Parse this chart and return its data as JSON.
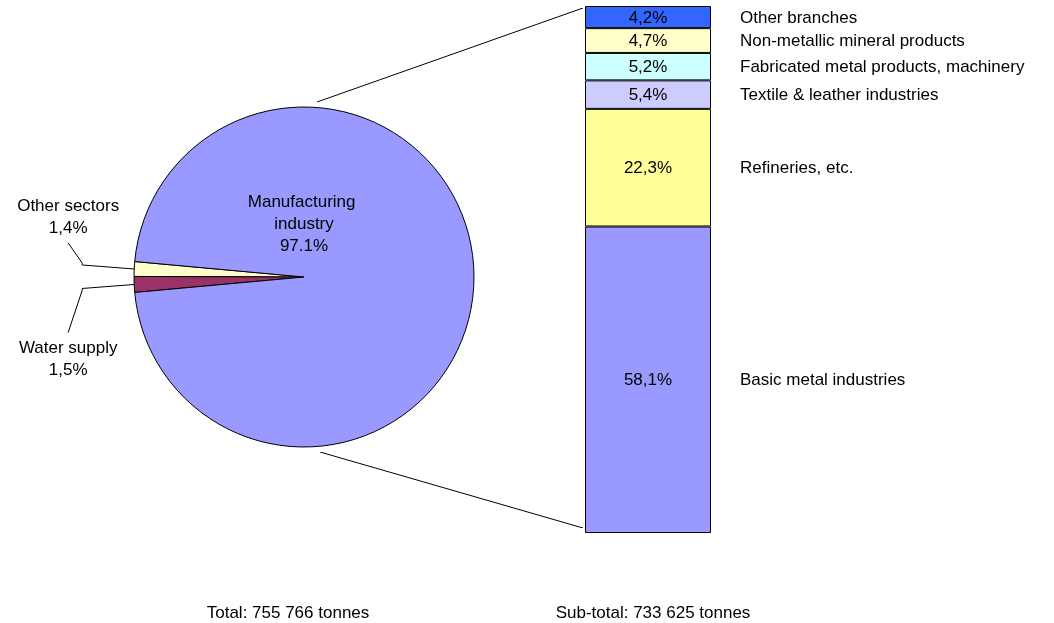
{
  "chart_data": [
    {
      "type": "pie",
      "categories": [
        "Other sectors",
        "Water supply",
        "Manufacturing industry"
      ],
      "values": [
        1.4,
        1.5,
        97.1
      ],
      "colors": [
        "#ffffcc",
        "#993366",
        "#9999ff"
      ],
      "value_labels": [
        "1,4%",
        "1,5%",
        "97.1%"
      ],
      "annotations": [
        "Total: 755 766 tonnes"
      ]
    },
    {
      "type": "bar",
      "stacked": true,
      "categories": [
        null
      ],
      "series": [
        {
          "name": "Basic metal industries",
          "color": "#9999ff",
          "values": [
            58.1
          ],
          "value_labels": [
            "58,1%"
          ]
        },
        {
          "name": "Refineries, etc.",
          "color": "#ffff99",
          "values": [
            22.3
          ],
          "value_labels": [
            "22,3%"
          ]
        },
        {
          "name": "Textile & leather industries",
          "color": "#ccccff",
          "values": [
            5.4
          ],
          "value_labels": [
            "5,4%"
          ]
        },
        {
          "name": "Fabricated metal products, machinery",
          "color": "#ccffff",
          "values": [
            5.2
          ],
          "value_labels": [
            "5,2%"
          ]
        },
        {
          "name": "Non-metallic mineral products",
          "color": "#ffffcc",
          "values": [
            4.7
          ],
          "value_labels": [
            "4,7%"
          ]
        },
        {
          "name": "Other branches",
          "color": "#3366ff",
          "values": [
            4.2
          ],
          "value_labels": [
            "4,2%"
          ]
        }
      ],
      "annotations": [
        "Sub-total: 733 625 tonnes"
      ]
    }
  ]
}
